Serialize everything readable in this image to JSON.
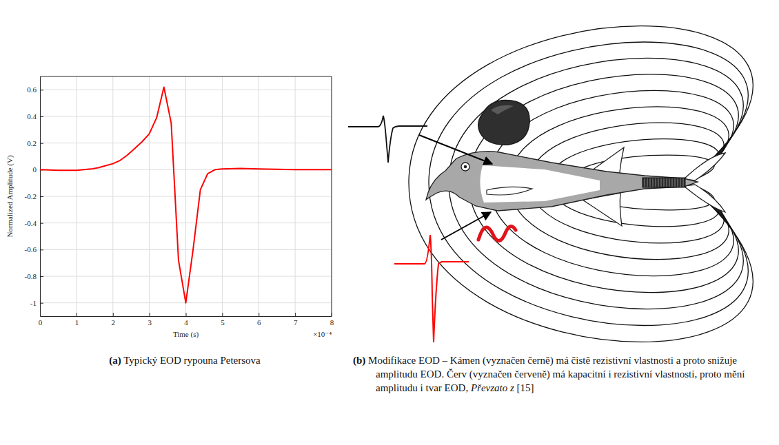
{
  "chart_data": {
    "type": "line",
    "x_label": "Time (s)",
    "y_label": "Normalized Amplitude (V)",
    "x_exponent_label": "×10⁻⁴",
    "x": [
      0,
      0.5,
      1.0,
      1.2,
      1.4,
      1.6,
      1.8,
      2.0,
      2.2,
      2.4,
      2.6,
      2.8,
      3.0,
      3.2,
      3.4,
      3.6,
      3.8,
      4.0,
      4.2,
      4.4,
      4.6,
      4.8,
      5.0,
      5.5,
      6.0,
      7.0,
      8.0
    ],
    "values": [
      0,
      -0.005,
      -0.005,
      0,
      0.005,
      0.015,
      0.03,
      0.045,
      0.07,
      0.11,
      0.16,
      0.21,
      0.27,
      0.39,
      0.62,
      0.35,
      -0.68,
      -1.0,
      -0.6,
      -0.15,
      -0.03,
      0.0,
      0.005,
      0.01,
      0.005,
      0.0,
      0.0
    ],
    "color": "#ff0000",
    "xlim": [
      0,
      8
    ],
    "xticks": [
      0,
      1,
      2,
      3,
      4,
      5,
      6,
      7,
      8
    ],
    "ylim": [
      -1.1,
      0.7
    ],
    "yticks": [
      -1,
      -0.8,
      -0.6,
      -0.4,
      -0.2,
      0,
      0.2,
      0.4,
      0.6
    ],
    "grid": true
  },
  "figure": {
    "panels": [
      {
        "letter": "(a)",
        "caption": "Typický EOD rypouna Petersova"
      },
      {
        "letter": "(b)",
        "caption": "Modifikace EOD – Kámen (vyznačen černě) má čistě rezistivní vlastnosti a proto snižuje amplitudu EOD. Červ (vyznačen červeně) má kapacitní i rezistivní vlastnosti, proto mění amplitudu i tvar EOD,",
        "source_label": "Převzato z",
        "source_ref": "[15]"
      }
    ]
  }
}
